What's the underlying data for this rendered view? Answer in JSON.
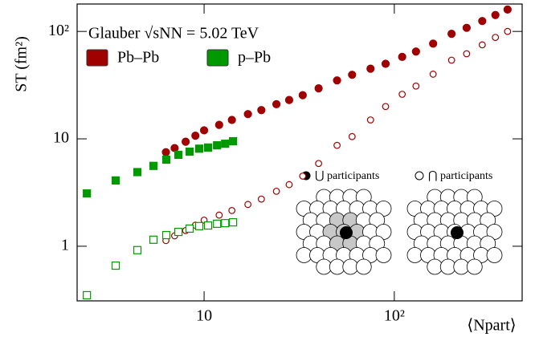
{
  "chart_data": {
    "type": "scatter",
    "title": "Glauber √sNN = 5.02 TeV",
    "x_label": "⟨Npart⟩",
    "y_label": "ST (fm²)",
    "log_x": true,
    "log_y": true,
    "legend": "upper left",
    "xlim": [
      2.15,
      470
    ],
    "ylim": [
      0.31,
      180
    ],
    "xticks": [
      10,
      {
        "value": 100,
        "label": "10²"
      }
    ],
    "yticks": [
      1,
      10,
      {
        "value": 100,
        "label": "10²"
      }
    ],
    "annotations": [
      "⋃ participants",
      "⋂ participants"
    ],
    "series": [
      {
        "name": "Pb–Pb",
        "color": "#a00000",
        "marker": "circle",
        "x": [
          6.3,
          7,
          8,
          9,
          10,
          12,
          14,
          17,
          20,
          24,
          28,
          33,
          40,
          50,
          60,
          75,
          90,
          110,
          130,
          160,
          200,
          240,
          290,
          340,
          394
        ],
        "values": [
          7.5,
          8.2,
          9.4,
          10.7,
          12,
          13.5,
          15,
          17,
          18.5,
          21,
          23,
          25.5,
          29.5,
          35,
          39.5,
          45,
          50,
          58,
          65,
          77,
          95,
          108,
          125,
          142,
          160
        ],
        "values_open": [
          1.13,
          1.25,
          1.4,
          1.57,
          1.75,
          1.95,
          2.15,
          2.45,
          2.75,
          3.25,
          3.75,
          4.5,
          5.9,
          8.7,
          10.5,
          15,
          20,
          26,
          31,
          40,
          54,
          62,
          75,
          88,
          100
        ]
      },
      {
        "name": "p–Pb",
        "color": "#009900",
        "marker": "square",
        "x": [
          2.42,
          3.43,
          4.46,
          5.42,
          6.33,
          7.33,
          8.39,
          9.43,
          10.5,
          11.7,
          12.9,
          14.2
        ],
        "values": [
          3.1,
          4.1,
          4.9,
          5.6,
          6.4,
          7.1,
          7.6,
          8.1,
          8.3,
          8.7,
          9.0,
          9.5
        ],
        "values_open": [
          0.35,
          0.66,
          0.92,
          1.15,
          1.27,
          1.36,
          1.46,
          1.54,
          1.56,
          1.62,
          1.64,
          1.67
        ]
      }
    ]
  }
}
